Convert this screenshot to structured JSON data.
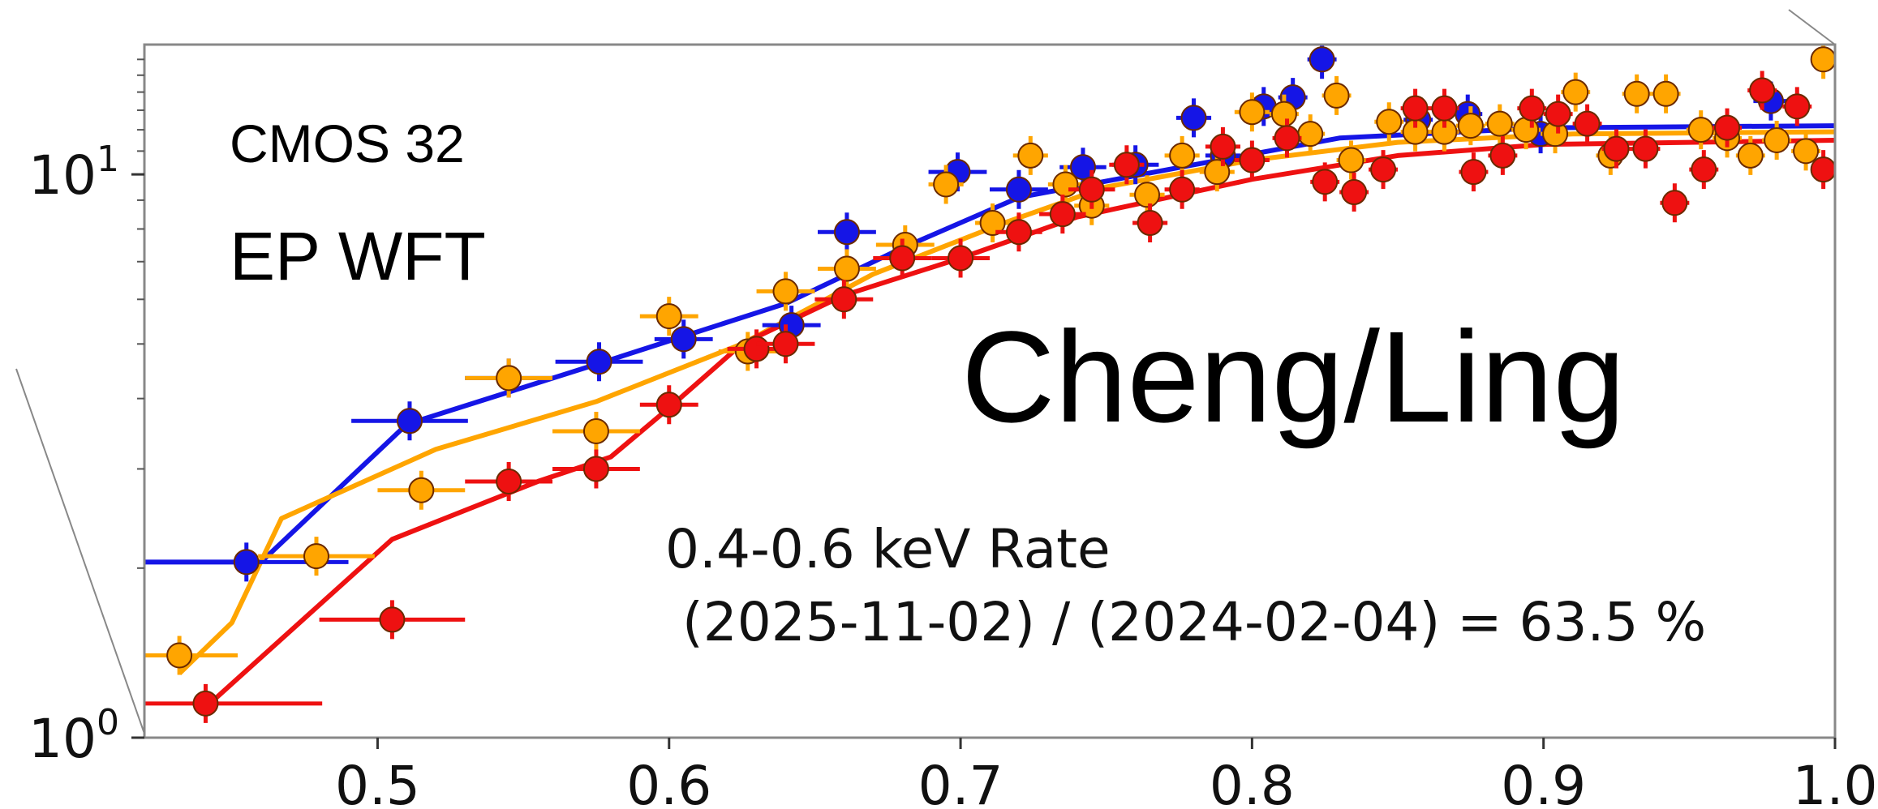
{
  "chart_data": {
    "type": "scatter",
    "xlim": [
      0.42,
      1.0
    ],
    "ylim": [
      1.0,
      17.0
    ],
    "y_scale": "log",
    "grid": false,
    "x_ticks": [
      {
        "value": 0.5,
        "label": "0.5"
      },
      {
        "value": 0.6,
        "label": "0.6"
      },
      {
        "value": 0.7,
        "label": "0.7"
      },
      {
        "value": 0.8,
        "label": "0.8"
      },
      {
        "value": 0.9,
        "label": "0.9"
      },
      {
        "value": 1.0,
        "label": "1.0"
      }
    ],
    "y_ticks": [
      {
        "value": 1,
        "base": "10",
        "exp": "0"
      },
      {
        "value": 10,
        "base": "10",
        "exp": "1"
      }
    ],
    "annotations": {
      "detector": "CMOS 32",
      "instrument": "EP WFT",
      "credit": "Cheng/Ling",
      "rate_line1": "0.4-0.6 keV Rate",
      "rate_line2": " (2025-11-02) / (2024-02-04) = 63.5 %"
    },
    "series": [
      {
        "color": "#1515e6",
        "model": [
          [
            0.42,
            2.05
          ],
          [
            0.46,
            2.05
          ],
          [
            0.51,
            3.6
          ],
          [
            0.575,
            4.6
          ],
          [
            0.64,
            5.9
          ],
          [
            0.68,
            7.4
          ],
          [
            0.72,
            9.1
          ],
          [
            0.78,
            10.4
          ],
          [
            0.83,
            11.6
          ],
          [
            0.9,
            12.1
          ],
          [
            1.0,
            12.2
          ]
        ],
        "points": [
          {
            "x": 0.455,
            "y": 2.05,
            "xerr": 0.035
          },
          {
            "x": 0.511,
            "y": 3.65,
            "xerr": 0.02
          },
          {
            "x": 0.545,
            "y": 4.35,
            "xerr": 0.015
          },
          {
            "x": 0.576,
            "y": 4.65,
            "xerr": 0.015
          },
          {
            "x": 0.605,
            "y": 5.1,
            "xerr": 0.01
          },
          {
            "x": 0.642,
            "y": 5.4,
            "xerr": 0.01
          },
          {
            "x": 0.661,
            "y": 7.9,
            "xerr": 0.01
          },
          {
            "x": 0.699,
            "y": 10.1,
            "xerr": 0.01
          },
          {
            "x": 0.72,
            "y": 9.4,
            "xerr": 0.01
          },
          {
            "x": 0.742,
            "y": 10.3,
            "xerr": 0.008
          },
          {
            "x": 0.76,
            "y": 10.4,
            "xerr": 0.008
          },
          {
            "x": 0.78,
            "y": 12.6,
            "xerr": 0.006
          },
          {
            "x": 0.79,
            "y": 10.8,
            "xerr": 0.006
          },
          {
            "x": 0.804,
            "y": 13.2,
            "xerr": 0.005
          },
          {
            "x": 0.814,
            "y": 13.7,
            "xerr": 0.005
          },
          {
            "x": 0.824,
            "y": 16.0,
            "xerr": 0.005
          },
          {
            "x": 0.857,
            "y": 12.5,
            "xerr": 0.005
          },
          {
            "x": 0.874,
            "y": 12.8,
            "xerr": 0.005
          },
          {
            "x": 0.899,
            "y": 11.8,
            "xerr": 0.005
          },
          {
            "x": 0.978,
            "y": 13.5,
            "xerr": 0.006
          }
        ]
      },
      {
        "color": "#ffa500",
        "model": [
          [
            0.432,
            1.3
          ],
          [
            0.45,
            1.6
          ],
          [
            0.467,
            2.45
          ],
          [
            0.52,
            3.25
          ],
          [
            0.575,
            3.95
          ],
          [
            0.625,
            5.0
          ],
          [
            0.67,
            6.65
          ],
          [
            0.715,
            8.2
          ],
          [
            0.75,
            9.5
          ],
          [
            0.8,
            10.6
          ],
          [
            0.85,
            11.4
          ],
          [
            0.91,
            11.8
          ],
          [
            1.0,
            11.9
          ]
        ],
        "points": [
          {
            "x": 0.432,
            "y": 1.4,
            "xerr": 0.02
          },
          {
            "x": 0.479,
            "y": 2.1,
            "xerr": 0.02
          },
          {
            "x": 0.515,
            "y": 2.75,
            "xerr": 0.015
          },
          {
            "x": 0.545,
            "y": 4.35,
            "xerr": 0.015
          },
          {
            "x": 0.575,
            "y": 3.5,
            "xerr": 0.015
          },
          {
            "x": 0.6,
            "y": 5.6,
            "xerr": 0.01
          },
          {
            "x": 0.627,
            "y": 4.85,
            "xerr": 0.01
          },
          {
            "x": 0.64,
            "y": 6.2,
            "xerr": 0.01
          },
          {
            "x": 0.661,
            "y": 6.8,
            "xerr": 0.01
          },
          {
            "x": 0.681,
            "y": 7.5,
            "xerr": 0.01
          },
          {
            "x": 0.695,
            "y": 9.6,
            "xerr": 0.006
          },
          {
            "x": 0.711,
            "y": 8.2,
            "xerr": 0.006
          },
          {
            "x": 0.724,
            "y": 10.8,
            "xerr": 0.006
          },
          {
            "x": 0.736,
            "y": 9.6,
            "xerr": 0.006
          },
          {
            "x": 0.745,
            "y": 8.8,
            "xerr": 0.006
          },
          {
            "x": 0.764,
            "y": 9.2,
            "xerr": 0.006
          },
          {
            "x": 0.776,
            "y": 10.8,
            "xerr": 0.006
          },
          {
            "x": 0.788,
            "y": 10.1,
            "xerr": 0.006
          },
          {
            "x": 0.8,
            "y": 12.9,
            "xerr": 0.006
          },
          {
            "x": 0.811,
            "y": 12.8,
            "xerr": 0.005
          },
          {
            "x": 0.82,
            "y": 11.8,
            "xerr": 0.005
          },
          {
            "x": 0.829,
            "y": 13.8,
            "xerr": 0.005
          },
          {
            "x": 0.834,
            "y": 10.6,
            "xerr": 0.005
          },
          {
            "x": 0.847,
            "y": 12.4,
            "xerr": 0.005
          },
          {
            "x": 0.856,
            "y": 11.9,
            "xerr": 0.005
          },
          {
            "x": 0.866,
            "y": 11.9,
            "xerr": 0.005
          },
          {
            "x": 0.875,
            "y": 12.2,
            "xerr": 0.005
          },
          {
            "x": 0.885,
            "y": 12.3,
            "xerr": 0.005
          },
          {
            "x": 0.894,
            "y": 12.0,
            "xerr": 0.005
          },
          {
            "x": 0.904,
            "y": 11.8,
            "xerr": 0.005
          },
          {
            "x": 0.911,
            "y": 14.0,
            "xerr": 0.005
          },
          {
            "x": 0.923,
            "y": 10.8,
            "xerr": 0.005
          },
          {
            "x": 0.932,
            "y": 13.9,
            "xerr": 0.005
          },
          {
            "x": 0.942,
            "y": 13.9,
            "xerr": 0.005
          },
          {
            "x": 0.954,
            "y": 12.0,
            "xerr": 0.005
          },
          {
            "x": 0.963,
            "y": 11.6,
            "xerr": 0.005
          },
          {
            "x": 0.971,
            "y": 10.8,
            "xerr": 0.005
          },
          {
            "x": 0.98,
            "y": 11.5,
            "xerr": 0.005
          },
          {
            "x": 0.99,
            "y": 11.0,
            "xerr": 0.005
          },
          {
            "x": 0.996,
            "y": 16.0,
            "xerr": 0.004
          }
        ]
      },
      {
        "color": "#ee1111",
        "model": [
          [
            0.44,
            1.12
          ],
          [
            0.505,
            2.25
          ],
          [
            0.555,
            2.85
          ],
          [
            0.58,
            3.15
          ],
          [
            0.6,
            3.85
          ],
          [
            0.625,
            5.0
          ],
          [
            0.66,
            6.1
          ],
          [
            0.7,
            7.1
          ],
          [
            0.74,
            8.4
          ],
          [
            0.8,
            9.8
          ],
          [
            0.85,
            10.8
          ],
          [
            0.9,
            11.3
          ],
          [
            1.0,
            11.5
          ]
        ],
        "points": [
          {
            "x": 0.441,
            "y": 1.15,
            "xerr": 0.04
          },
          {
            "x": 0.505,
            "y": 1.62,
            "xerr": 0.025
          },
          {
            "x": 0.545,
            "y": 2.85,
            "xerr": 0.015
          },
          {
            "x": 0.575,
            "y": 3.0,
            "xerr": 0.015
          },
          {
            "x": 0.6,
            "y": 3.9,
            "xerr": 0.01
          },
          {
            "x": 0.63,
            "y": 4.9,
            "xerr": 0.01
          },
          {
            "x": 0.64,
            "y": 5.0,
            "xerr": 0.01
          },
          {
            "x": 0.66,
            "y": 6.0,
            "xerr": 0.01
          },
          {
            "x": 0.68,
            "y": 7.1,
            "xerr": 0.01
          },
          {
            "x": 0.7,
            "y": 7.1,
            "xerr": 0.01
          },
          {
            "x": 0.72,
            "y": 7.9,
            "xerr": 0.008
          },
          {
            "x": 0.735,
            "y": 8.5,
            "xerr": 0.008
          },
          {
            "x": 0.745,
            "y": 9.4,
            "xerr": 0.008
          },
          {
            "x": 0.757,
            "y": 10.4,
            "xerr": 0.006
          },
          {
            "x": 0.765,
            "y": 8.2,
            "xerr": 0.006
          },
          {
            "x": 0.776,
            "y": 9.4,
            "xerr": 0.006
          },
          {
            "x": 0.79,
            "y": 11.2,
            "xerr": 0.006
          },
          {
            "x": 0.8,
            "y": 10.6,
            "xerr": 0.006
          },
          {
            "x": 0.812,
            "y": 11.6,
            "xerr": 0.005
          },
          {
            "x": 0.825,
            "y": 9.7,
            "xerr": 0.005
          },
          {
            "x": 0.835,
            "y": 9.3,
            "xerr": 0.005
          },
          {
            "x": 0.845,
            "y": 10.2,
            "xerr": 0.005
          },
          {
            "x": 0.856,
            "y": 13.1,
            "xerr": 0.005
          },
          {
            "x": 0.866,
            "y": 13.1,
            "xerr": 0.005
          },
          {
            "x": 0.876,
            "y": 10.1,
            "xerr": 0.005
          },
          {
            "x": 0.886,
            "y": 10.8,
            "xerr": 0.005
          },
          {
            "x": 0.896,
            "y": 13.1,
            "xerr": 0.005
          },
          {
            "x": 0.905,
            "y": 12.8,
            "xerr": 0.005
          },
          {
            "x": 0.915,
            "y": 12.3,
            "xerr": 0.005
          },
          {
            "x": 0.925,
            "y": 11.1,
            "xerr": 0.005
          },
          {
            "x": 0.935,
            "y": 11.1,
            "xerr": 0.005
          },
          {
            "x": 0.945,
            "y": 8.9,
            "xerr": 0.005
          },
          {
            "x": 0.955,
            "y": 10.2,
            "xerr": 0.005
          },
          {
            "x": 0.963,
            "y": 12.1,
            "xerr": 0.005
          },
          {
            "x": 0.975,
            "y": 14.1,
            "xerr": 0.005
          },
          {
            "x": 0.987,
            "y": 13.2,
            "xerr": 0.005
          },
          {
            "x": 0.996,
            "y": 10.2,
            "xerr": 0.004
          }
        ]
      }
    ]
  }
}
